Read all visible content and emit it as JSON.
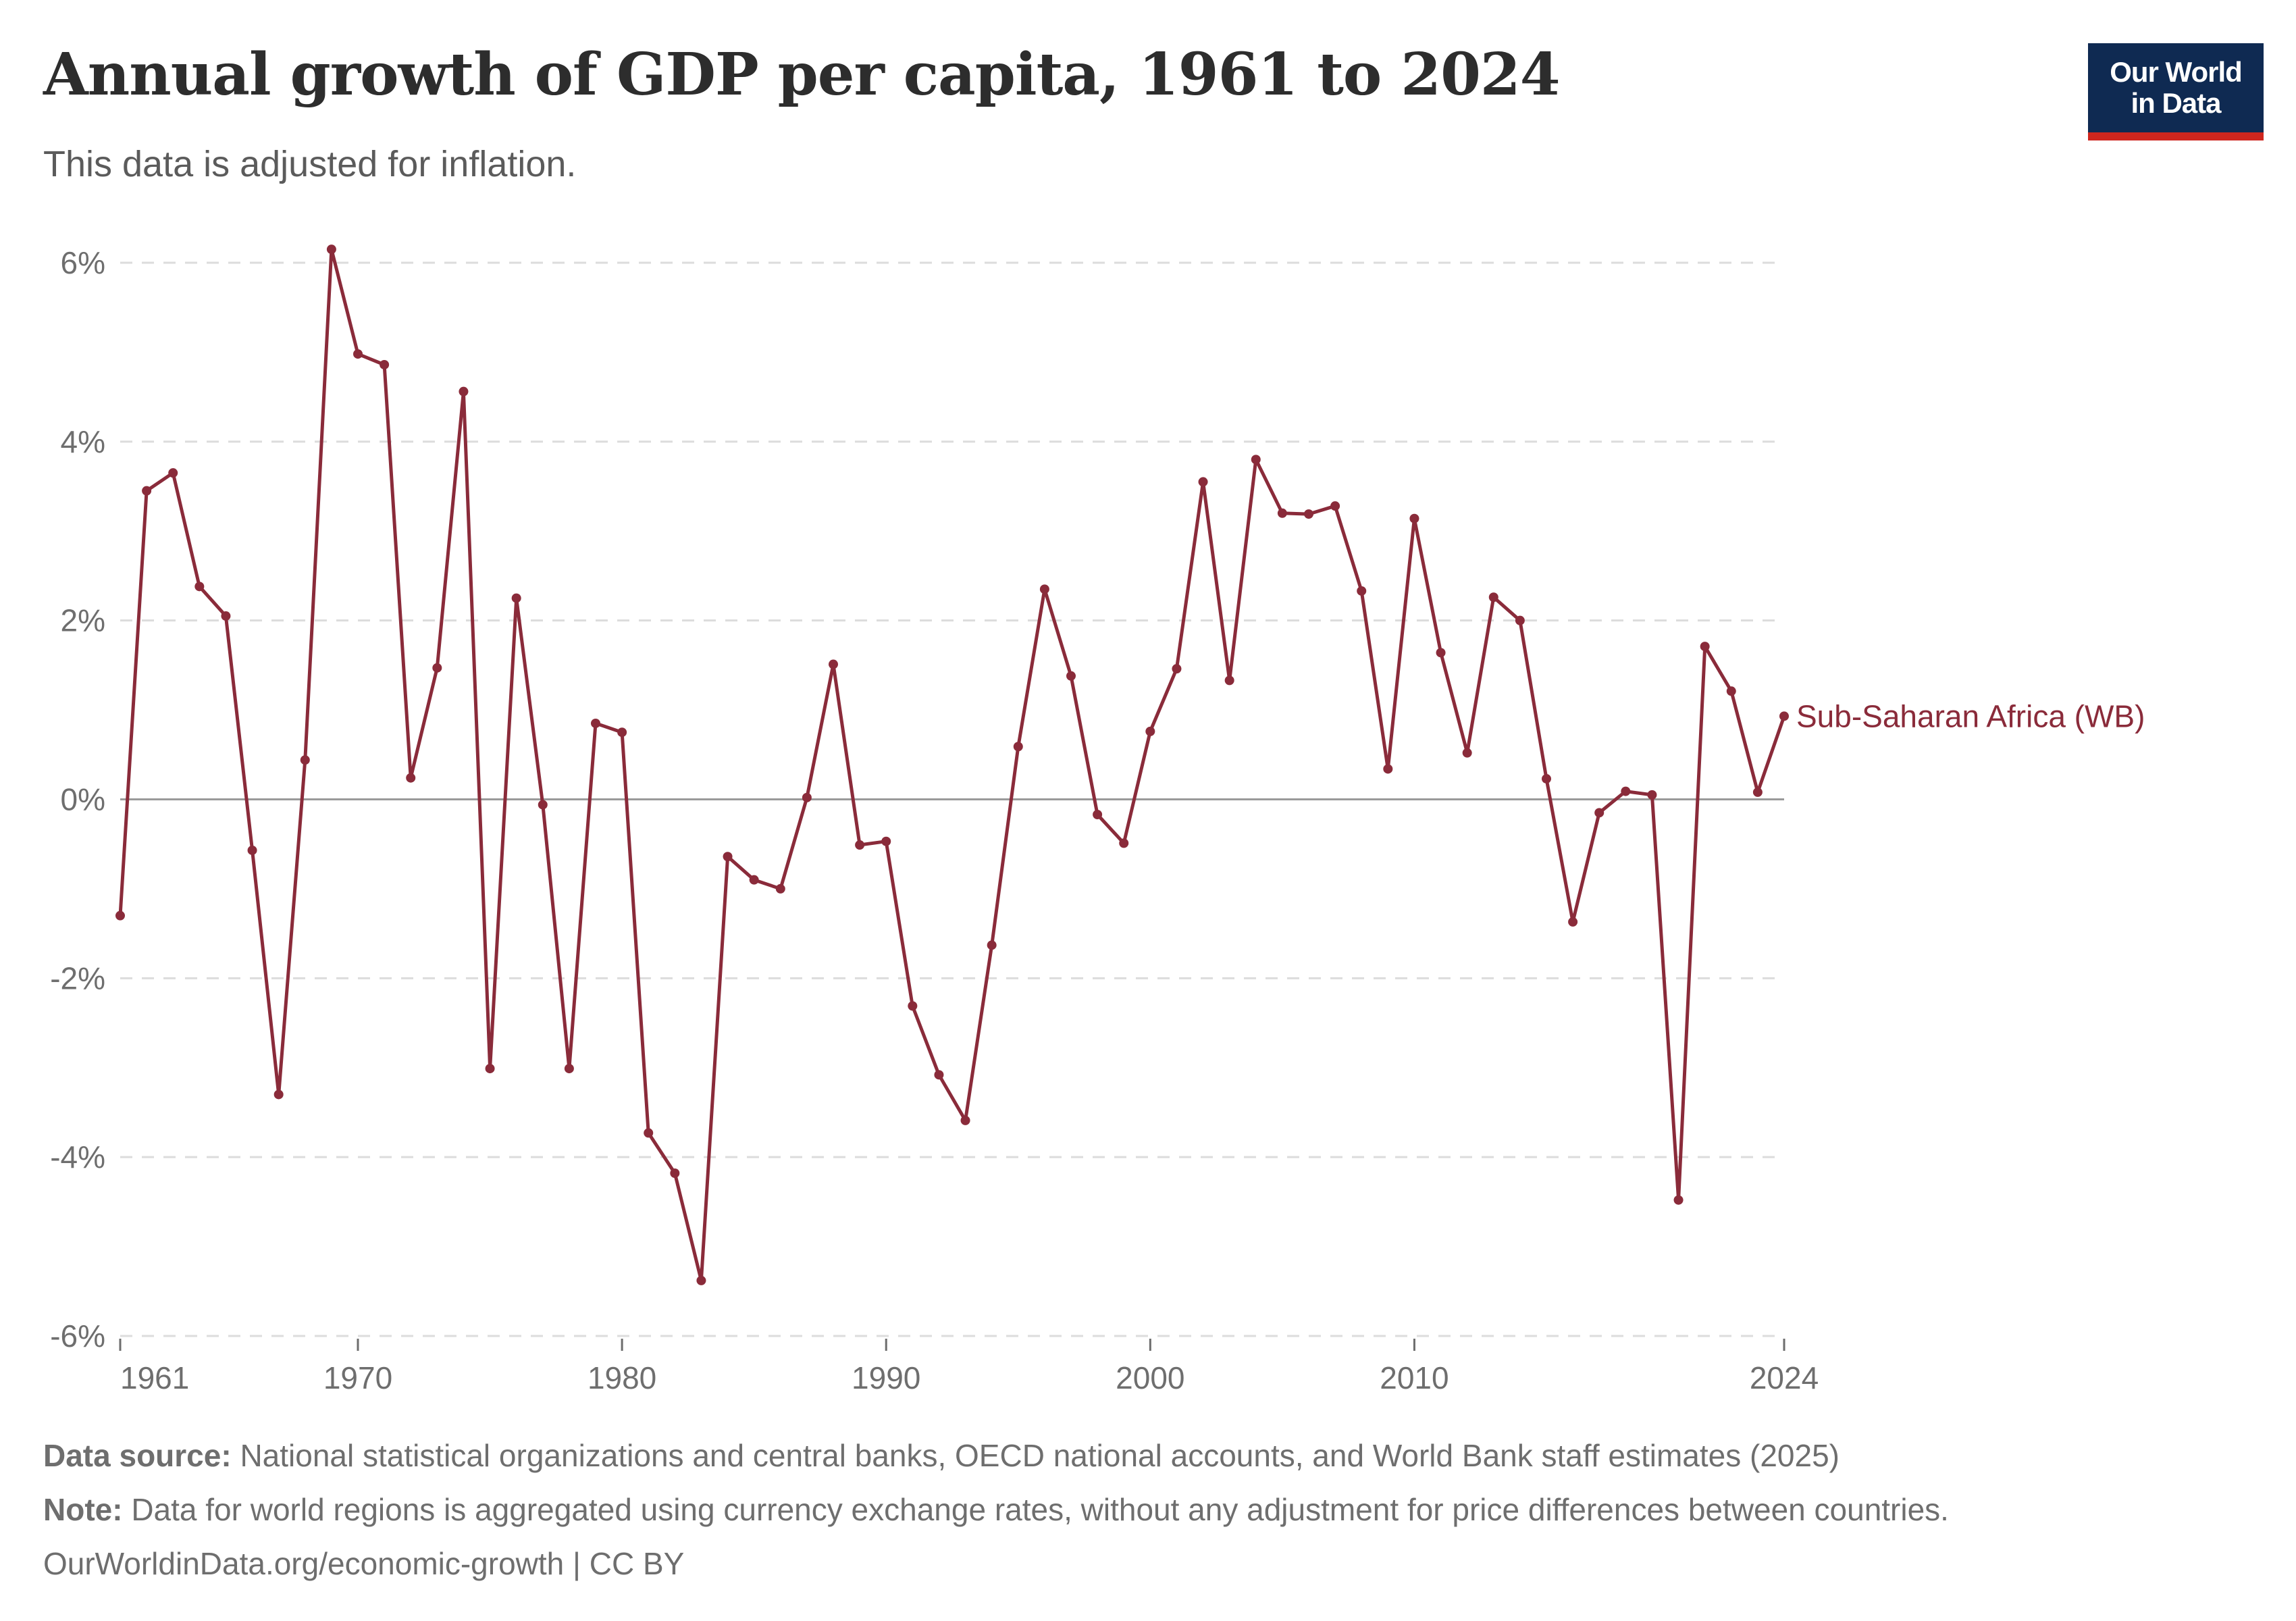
{
  "header": {
    "title": "Annual growth of GDP per capita, 1961 to 2024",
    "subtitle": "This data is adjusted for inflation."
  },
  "logo": {
    "line1": "Our World",
    "line2": "in Data",
    "bg_color": "#0f2a52",
    "accent_color": "#ce261e"
  },
  "footer": {
    "source_label": "Data source:",
    "source_text": "National statistical organizations and central banks, OECD national accounts, and World Bank staff estimates (2025)",
    "note_label": "Note:",
    "note_text": "Data for world regions is aggregated using currency exchange rates, without any adjustment for price differences between countries.",
    "url": "OurWorldinData.org/economic-growth | CC BY"
  },
  "chart_data": {
    "type": "line",
    "title": "Annual growth of GDP per capita, 1961 to 2024",
    "subtitle": "This data is adjusted for inflation.",
    "xlabel": "",
    "ylabel": "",
    "xlim": [
      1961,
      2024
    ],
    "ylim": [
      -6,
      6
    ],
    "y_ticks": [
      -6,
      -4,
      -2,
      0,
      2,
      4,
      6
    ],
    "y_tick_labels": [
      "-6%",
      "-4%",
      "-2%",
      "0%",
      "2%",
      "4%",
      "6%"
    ],
    "x_ticks": [
      1961,
      1970,
      1980,
      1990,
      2000,
      2010,
      2024
    ],
    "x_tick_labels": [
      "1961",
      "1970",
      "1980",
      "1990",
      "2000",
      "2010",
      "2024"
    ],
    "grid": "horizontal dashed",
    "legend": "inline label at line end",
    "line_color": "#8a2b3a",
    "x": [
      1961,
      1962,
      1963,
      1964,
      1965,
      1966,
      1967,
      1968,
      1969,
      1970,
      1971,
      1972,
      1973,
      1974,
      1975,
      1976,
      1977,
      1978,
      1979,
      1980,
      1981,
      1982,
      1983,
      1984,
      1985,
      1986,
      1987,
      1988,
      1989,
      1990,
      1991,
      1992,
      1993,
      1994,
      1995,
      1996,
      1997,
      1998,
      1999,
      2000,
      2001,
      2002,
      2003,
      2004,
      2005,
      2006,
      2007,
      2008,
      2009,
      2010,
      2011,
      2012,
      2013,
      2014,
      2015,
      2016,
      2017,
      2018,
      2019,
      2020,
      2021,
      2022,
      2023,
      2024
    ],
    "series": [
      {
        "name": "Sub-Saharan Africa (WB)",
        "values": [
          -1.3,
          3.45,
          3.65,
          2.38,
          2.05,
          -0.57,
          -3.3,
          0.44,
          6.15,
          4.98,
          4.86,
          0.24,
          1.47,
          4.56,
          -3.01,
          2.25,
          -0.06,
          -3.01,
          0.85,
          0.75,
          -3.73,
          -4.18,
          -5.38,
          -0.64,
          -0.9,
          -1.0,
          0.02,
          1.51,
          -0.51,
          -0.47,
          -2.31,
          -3.08,
          -3.59,
          -1.63,
          0.59,
          2.35,
          1.38,
          -0.17,
          -0.49,
          0.76,
          1.46,
          3.55,
          1.33,
          3.8,
          3.2,
          3.19,
          3.28,
          2.33,
          0.34,
          3.14,
          1.64,
          0.52,
          2.26,
          2.0,
          0.23,
          -1.37,
          -0.15,
          0.09,
          0.05,
          -4.48,
          1.71,
          1.21,
          0.08,
          0.93
        ]
      }
    ]
  }
}
